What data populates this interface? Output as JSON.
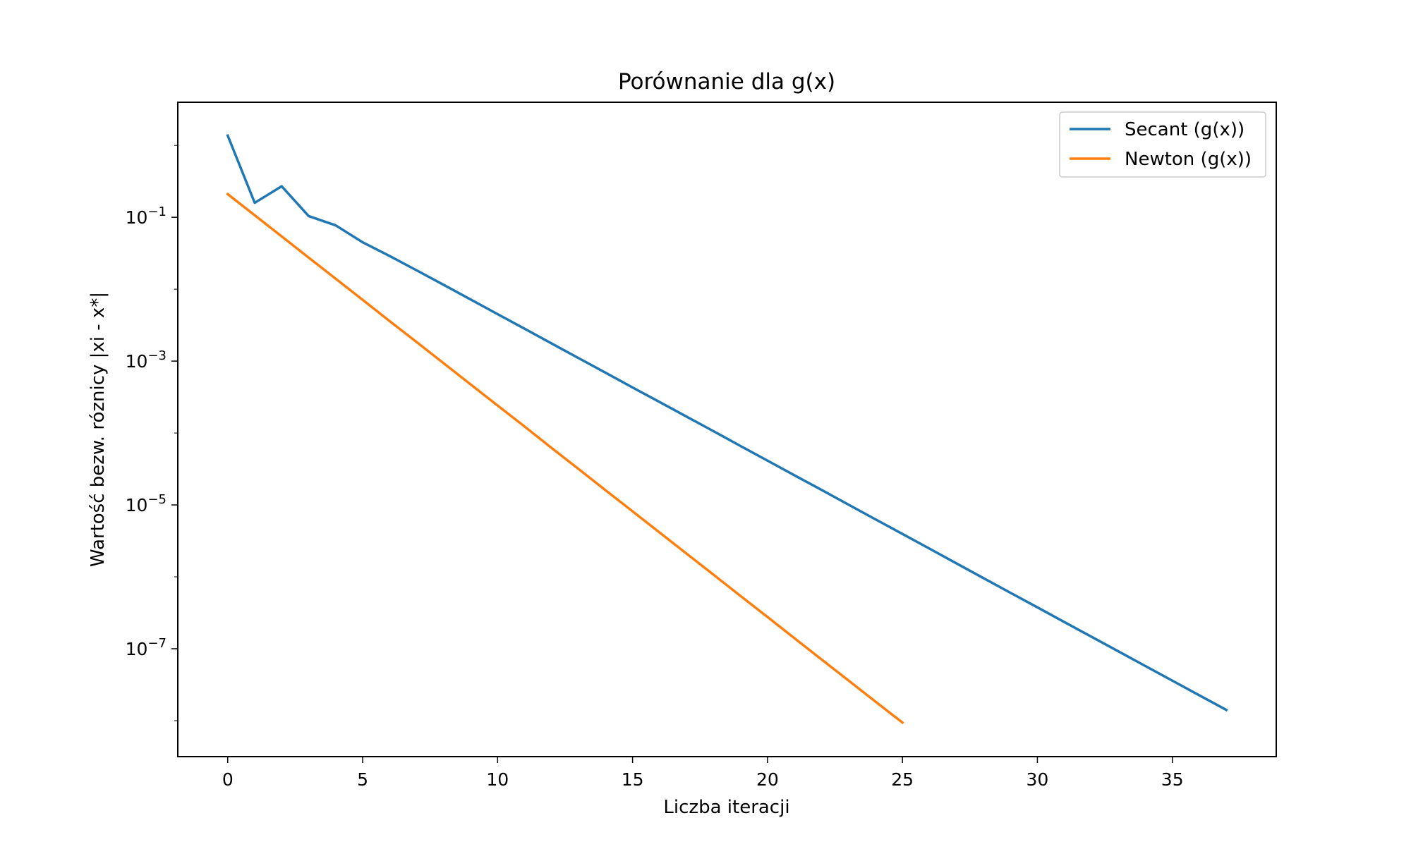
{
  "chart_data": {
    "type": "line",
    "title": "Porównanie dla g(x)",
    "xlabel": "Liczba iteracji",
    "ylabel": "Wartość bezw. róznicy |xi - x*|",
    "xlim": [
      -1.85,
      38.85
    ],
    "ylim": [
      3.16e-09,
      3.98
    ],
    "yscale": "log",
    "xticks": [
      0,
      5,
      10,
      15,
      20,
      25,
      30,
      35
    ],
    "yticks": [
      {
        "value": 0.1,
        "base": "10",
        "exponent": "−1"
      },
      {
        "value": 0.001,
        "base": "10",
        "exponent": "−3"
      },
      {
        "value": 1e-05,
        "base": "10",
        "exponent": "−5"
      },
      {
        "value": 1e-07,
        "base": "10",
        "exponent": "−7"
      }
    ],
    "grid": false,
    "legend": {
      "position": "top-right"
    },
    "series": [
      {
        "name": "Secant (g(x))",
        "color": "#1f77b4",
        "x": [
          0,
          1,
          2,
          3,
          4,
          5,
          6,
          7,
          8,
          9,
          10,
          11,
          12,
          13,
          14,
          15,
          16,
          17,
          18,
          19,
          20,
          21,
          22,
          23,
          24,
          25,
          26,
          27,
          28,
          29,
          30,
          31,
          32,
          33,
          34,
          35,
          36,
          37
        ],
        "values": [
          1.37,
          0.159,
          0.27,
          0.104,
          0.0773,
          0.0449,
          0.0289,
          0.0183,
          0.0115,
          0.0072,
          0.0045,
          0.00282,
          0.00176,
          0.0011,
          0.00069,
          0.00043,
          0.00027,
          0.000169,
          0.000106,
          6.6e-05,
          4.13e-05,
          2.58e-05,
          1.62e-05,
          1.01e-05,
          6.3e-06,
          3.95e-06,
          2.47e-06,
          1.54e-06,
          9.6e-07,
          6e-07,
          3.76e-07,
          2.35e-07,
          1.47e-07,
          9.2e-08,
          5.75e-08,
          3.6e-08,
          2.25e-08,
          1.41e-08
        ]
      },
      {
        "name": "Newton (g(x))",
        "color": "#ff7f0e",
        "x": [
          0,
          1,
          2,
          3,
          4,
          5,
          6,
          7,
          8,
          9,
          10,
          11,
          12,
          13,
          14,
          15,
          16,
          17,
          18,
          19,
          20,
          21,
          22,
          23,
          24,
          25
        ],
        "values": [
          0.21,
          0.1067,
          0.0542,
          0.0275,
          0.014,
          0.0071,
          0.0036,
          0.00184,
          0.000934,
          0.000475,
          0.000241,
          0.000123,
          6.2e-05,
          3.16e-05,
          1.6e-05,
          8.15e-06,
          4.14e-06,
          2.1e-06,
          1.07e-06,
          5.43e-07,
          2.76e-07,
          1.4e-07,
          7.1e-08,
          3.62e-08,
          1.84e-08,
          9.4e-09
        ]
      }
    ]
  }
}
